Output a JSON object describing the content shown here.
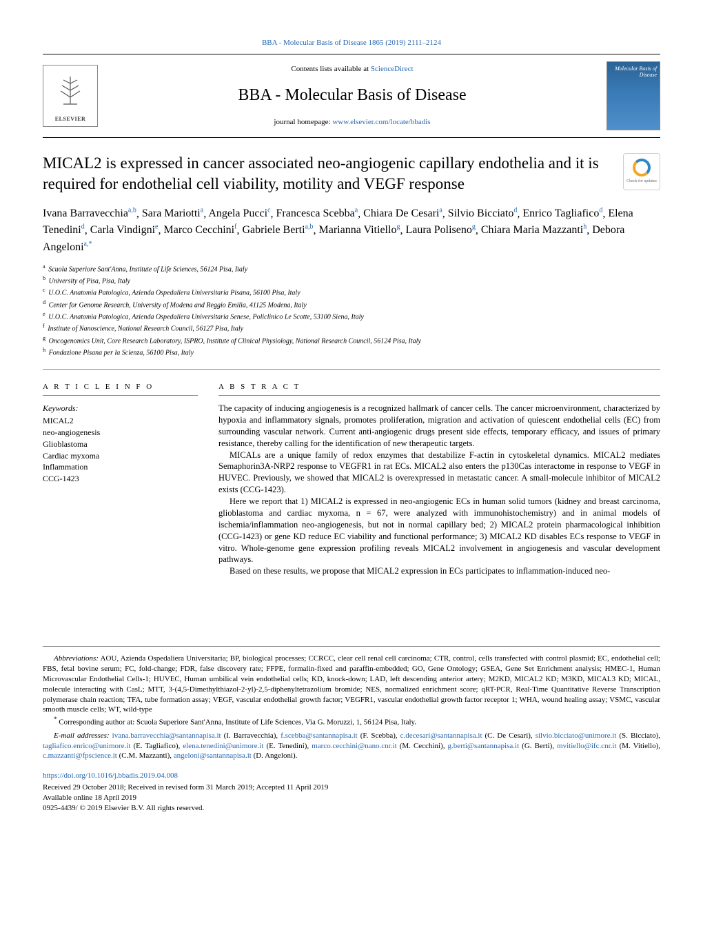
{
  "header": {
    "citation": "BBA - Molecular Basis of Disease 1865 (2019) 2111–2124",
    "contents_prefix": "Contents lists available at ",
    "contents_link": "ScienceDirect",
    "journal_title": "BBA - Molecular Basis of Disease",
    "homepage_prefix": "journal homepage: ",
    "homepage_link": "www.elsevier.com/locate/bbadis",
    "elsevier_label": "ELSEVIER",
    "cover_label": "Molecular Basis of Disease"
  },
  "article": {
    "title": "MICAL2 is expressed in cancer associated neo-angiogenic capillary endothelia and it is required for endothelial cell viability, motility and VEGF response",
    "check_updates": "Check for updates"
  },
  "authors": [
    {
      "name": "Ivana Barravecchia",
      "sup": "a,b"
    },
    {
      "name": "Sara Mariotti",
      "sup": "a"
    },
    {
      "name": "Angela Pucci",
      "sup": "c"
    },
    {
      "name": "Francesca Scebba",
      "sup": "a"
    },
    {
      "name": "Chiara De Cesari",
      "sup": "a"
    },
    {
      "name": "Silvio Bicciato",
      "sup": "d"
    },
    {
      "name": "Enrico Tagliafico",
      "sup": "d"
    },
    {
      "name": "Elena Tenedini",
      "sup": "d"
    },
    {
      "name": "Carla Vindigni",
      "sup": "e"
    },
    {
      "name": "Marco Cecchini",
      "sup": "f"
    },
    {
      "name": "Gabriele Berti",
      "sup": "a,b"
    },
    {
      "name": "Marianna Vitiello",
      "sup": "g"
    },
    {
      "name": "Laura Poliseno",
      "sup": "g"
    },
    {
      "name": "Chiara Maria Mazzanti",
      "sup": "h"
    },
    {
      "name": "Debora Angeloni",
      "sup": "a,",
      "corr": "*"
    }
  ],
  "affiliations": [
    {
      "sup": "a",
      "text": "Scuola Superiore Sant'Anna, Institute of Life Sciences, 56124 Pisa, Italy"
    },
    {
      "sup": "b",
      "text": "University of Pisa, Pisa, Italy"
    },
    {
      "sup": "c",
      "text": "U.O.C. Anatomia Patologica, Azienda Ospedaliera Universitaria Pisana, 56100 Pisa, Italy"
    },
    {
      "sup": "d",
      "text": "Center for Genome Research, University of Modena and Reggio Emilia, 41125 Modena, Italy"
    },
    {
      "sup": "e",
      "text": "U.O.C. Anatomia Patologica, Azienda Ospedaliera Universitaria Senese, Policlinico Le Scotte, 53100 Siena, Italy"
    },
    {
      "sup": "f",
      "text": "Institute of Nanoscience, National Research Council, 56127 Pisa, Italy"
    },
    {
      "sup": "g",
      "text": "Oncogenomics Unit, Core Research Laboratory, ISPRO, Institute of Clinical Physiology, National Research Council, 56124 Pisa, Italy"
    },
    {
      "sup": "h",
      "text": "Fondazione Pisana per la Scienza, 56100 Pisa, Italy"
    }
  ],
  "article_info": {
    "heading": "A R T I C L E  I N F O",
    "keywords_label": "Keywords:",
    "keywords": [
      "MICAL2",
      "neo-angiogenesis",
      "Glioblastoma",
      "Cardiac myxoma",
      "Inflammation",
      "CCG-1423"
    ]
  },
  "abstract": {
    "heading": "A B S T R A C T",
    "paragraphs": [
      "The capacity of inducing angiogenesis is a recognized hallmark of cancer cells. The cancer microenvironment, characterized by hypoxia and inflammatory signals, promotes proliferation, migration and activation of quiescent endothelial cells (EC) from surrounding vascular network. Current anti-angiogenic drugs present side effects, temporary efficacy, and issues of primary resistance, thereby calling for the identification of new therapeutic targets.",
      "MICALs are a unique family of redox enzymes that destabilize F-actin in cytoskeletal dynamics. MICAL2 mediates Semaphorin3A-NRP2 response to VEGFR1 in rat ECs. MICAL2 also enters the p130Cas interactome in response to VEGF in HUVEC. Previously, we showed that MICAL2 is overexpressed in metastatic cancer. A small-molecule inhibitor of MICAL2 exists (CCG-1423).",
      "Here we report that 1) MICAL2 is expressed in neo-angiogenic ECs in human solid tumors (kidney and breast carcinoma, glioblastoma and cardiac myxoma, n = 67, were analyzed with immunohistochemistry) and in animal models of ischemia/inflammation neo-angiogenesis, but not in normal capillary bed; 2) MICAL2 protein pharmacological inhibition (CCG-1423) or gene KD reduce EC viability and functional performance; 3) MICAL2 KD disables ECs response to VEGF in vitro. Whole-genome gene expression profiling reveals MICAL2 involvement in angiogenesis and vascular development pathways.",
      "Based on these results, we propose that MICAL2 expression in ECs participates to inflammation-induced neo-"
    ]
  },
  "footer": {
    "abbrev_label": "Abbreviations:",
    "abbrev_text": " AOU, Azienda Ospedaliera Universitaria; BP, biological processes; CCRCC, clear cell renal cell carcinoma; CTR, control, cells transfected with control plasmid; EC, endothelial cell; FBS, fetal bovine serum; FC, fold-change; FDR, false discovery rate; FFPE, formalin-fixed and paraffin-embedded; GO, Gene Ontology; GSEA, Gene Set Enrichment analysis; HMEC-1, Human Microvascular Endothelial Cells-1; HUVEC, Human umbilical vein endothelial cells; KD, knock-down; LAD, left descending anterior artery; M2KD, MICAL2 KD; M3KD, MICAL3 KD; MICAL, molecule interacting with CasL; MTT, 3-(4,5-Dimethylthiazol-2-yl)-2,5-diphenyltetrazolium bromide; NES, normalized enrichment score; qRT-PCR, Real-Time Quantitative Reverse Transcription polymerase chain reaction; TFA, tube formation assay; VEGF, vascular endothelial growth factor; VEGFR1, vascular endothelial growth factor receptor 1; WHA, wound healing assay; VSMC, vascular smooth muscle cells; WT, wild-type",
    "corr_marker": "*",
    "corr_text": " Corresponding author at: Scuola Superiore Sant'Anna, Institute of Life Sciences, Via G. Moruzzi, 1, 56124 Pisa, Italy.",
    "email_label": "E-mail addresses: ",
    "emails": [
      {
        "email": "ivana.barravecchia@santannapisa.it",
        "name": "(I. Barravecchia)"
      },
      {
        "email": "f.scebba@santannapisa.it",
        "name": "(F. Scebba)"
      },
      {
        "email": "c.decesari@santannapisa.it",
        "name": "(C. De Cesari)"
      },
      {
        "email": "silvio.bicciato@unimore.it",
        "name": "(S. Bicciato)"
      },
      {
        "email": "tagliafico.enrico@unimore.it",
        "name": "(E. Tagliafico)"
      },
      {
        "email": "elena.tenedini@unimore.it",
        "name": "(E. Tenedini)"
      },
      {
        "email": "marco.cecchini@nano.cnr.it",
        "name": "(M. Cecchini)"
      },
      {
        "email": "g.berti@santannapisa.it",
        "name": "(G. Berti)"
      },
      {
        "email": "mvitiello@ifc.cnr.it",
        "name": "(M. Vitiello)"
      },
      {
        "email": "c.mazzanti@fpscience.it",
        "name": "(C.M. Mazzanti)"
      },
      {
        "email": "angeloni@santannapisa.it",
        "name": "(D. Angeloni)."
      }
    ]
  },
  "pub": {
    "doi": "https://doi.org/10.1016/j.bbadis.2019.04.008",
    "received": "Received 29 October 2018; Received in revised form 31 March 2019; Accepted 11 April 2019",
    "online": "Available online 18 April 2019",
    "copyright": "0925-4439/ © 2019 Elsevier B.V. All rights reserved."
  }
}
